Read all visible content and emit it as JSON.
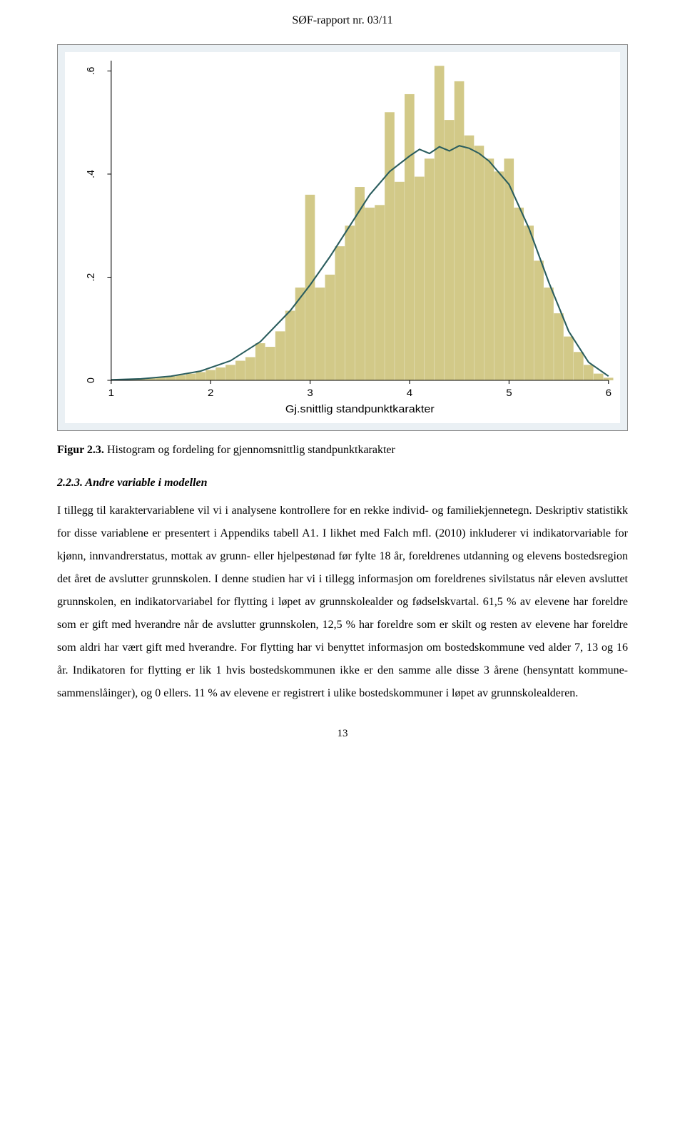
{
  "header": {
    "report_label": "SØF-rapport nr. 03/11"
  },
  "figure": {
    "chart": {
      "type": "histogram_with_density",
      "xlim": [
        1,
        6
      ],
      "ylim": [
        0,
        0.62
      ],
      "xticks": [
        1,
        2,
        3,
        4,
        5,
        6
      ],
      "yticks": [
        0,
        0.2,
        0.4,
        0.6
      ],
      "ytick_labels": [
        "0",
        ".2",
        ".4",
        ".6"
      ],
      "xlabel": "Gj.snittlig standpunktkarakter",
      "background_color": "#eaf0f4",
      "plot_background": "#ffffff",
      "bar_color": "#d2c988",
      "density_color": "#2a5d5e",
      "axis_color": "#000000",
      "tick_fontsize": 14,
      "label_fontsize": 15,
      "bin_width": 0.1,
      "bins": [
        {
          "x": 1.2,
          "h": 0.002
        },
        {
          "x": 1.3,
          "h": 0.003
        },
        {
          "x": 1.4,
          "h": 0.004
        },
        {
          "x": 1.5,
          "h": 0.006
        },
        {
          "x": 1.6,
          "h": 0.008
        },
        {
          "x": 1.7,
          "h": 0.01
        },
        {
          "x": 1.8,
          "h": 0.013
        },
        {
          "x": 1.9,
          "h": 0.016
        },
        {
          "x": 2.0,
          "h": 0.02
        },
        {
          "x": 2.1,
          "h": 0.025
        },
        {
          "x": 2.2,
          "h": 0.03
        },
        {
          "x": 2.3,
          "h": 0.038
        },
        {
          "x": 2.4,
          "h": 0.045
        },
        {
          "x": 2.5,
          "h": 0.072
        },
        {
          "x": 2.6,
          "h": 0.065
        },
        {
          "x": 2.7,
          "h": 0.095
        },
        {
          "x": 2.8,
          "h": 0.135
        },
        {
          "x": 2.9,
          "h": 0.18
        },
        {
          "x": 3.0,
          "h": 0.36
        },
        {
          "x": 3.1,
          "h": 0.18
        },
        {
          "x": 3.2,
          "h": 0.205
        },
        {
          "x": 3.3,
          "h": 0.26
        },
        {
          "x": 3.4,
          "h": 0.3
        },
        {
          "x": 3.5,
          "h": 0.375
        },
        {
          "x": 3.6,
          "h": 0.335
        },
        {
          "x": 3.7,
          "h": 0.34
        },
        {
          "x": 3.8,
          "h": 0.52
        },
        {
          "x": 3.9,
          "h": 0.385
        },
        {
          "x": 4.0,
          "h": 0.555
        },
        {
          "x": 4.1,
          "h": 0.395
        },
        {
          "x": 4.2,
          "h": 0.43
        },
        {
          "x": 4.3,
          "h": 0.61
        },
        {
          "x": 4.4,
          "h": 0.505
        },
        {
          "x": 4.5,
          "h": 0.58
        },
        {
          "x": 4.6,
          "h": 0.475
        },
        {
          "x": 4.7,
          "h": 0.455
        },
        {
          "x": 4.8,
          "h": 0.43
        },
        {
          "x": 4.9,
          "h": 0.405
        },
        {
          "x": 5.0,
          "h": 0.43
        },
        {
          "x": 5.1,
          "h": 0.335
        },
        {
          "x": 5.2,
          "h": 0.3
        },
        {
          "x": 5.3,
          "h": 0.232
        },
        {
          "x": 5.4,
          "h": 0.18
        },
        {
          "x": 5.5,
          "h": 0.13
        },
        {
          "x": 5.6,
          "h": 0.085
        },
        {
          "x": 5.7,
          "h": 0.055
        },
        {
          "x": 5.8,
          "h": 0.03
        },
        {
          "x": 5.9,
          "h": 0.013
        },
        {
          "x": 6.0,
          "h": 0.005
        }
      ],
      "density_points": [
        {
          "x": 1.0,
          "y": 0.001
        },
        {
          "x": 1.3,
          "y": 0.003
        },
        {
          "x": 1.6,
          "y": 0.008
        },
        {
          "x": 1.9,
          "y": 0.018
        },
        {
          "x": 2.2,
          "y": 0.038
        },
        {
          "x": 2.5,
          "y": 0.075
        },
        {
          "x": 2.8,
          "y": 0.135
        },
        {
          "x": 3.0,
          "y": 0.185
        },
        {
          "x": 3.2,
          "y": 0.24
        },
        {
          "x": 3.4,
          "y": 0.3
        },
        {
          "x": 3.6,
          "y": 0.36
        },
        {
          "x": 3.8,
          "y": 0.405
        },
        {
          "x": 4.0,
          "y": 0.435
        },
        {
          "x": 4.1,
          "y": 0.448
        },
        {
          "x": 4.2,
          "y": 0.44
        },
        {
          "x": 4.3,
          "y": 0.453
        },
        {
          "x": 4.4,
          "y": 0.445
        },
        {
          "x": 4.5,
          "y": 0.455
        },
        {
          "x": 4.6,
          "y": 0.45
        },
        {
          "x": 4.7,
          "y": 0.44
        },
        {
          "x": 4.8,
          "y": 0.425
        },
        {
          "x": 5.0,
          "y": 0.38
        },
        {
          "x": 5.2,
          "y": 0.295
        },
        {
          "x": 5.4,
          "y": 0.19
        },
        {
          "x": 5.6,
          "y": 0.095
        },
        {
          "x": 5.8,
          "y": 0.035
        },
        {
          "x": 6.0,
          "y": 0.008
        }
      ]
    },
    "caption_prefix": "Figur 2.3.",
    "caption_text": " Histogram og fordeling for gjennomsnittlig standpunktkarakter"
  },
  "section": {
    "heading": "2.2.3. Andre variable i modellen",
    "body": "I tillegg til karaktervariablene vil vi i analysene kontrollere for en rekke individ- og familie­kjennetegn. Deskriptiv statistikk for disse variablene er presentert i Appendiks tabell A1. I likhet med Falch mfl. (2010) inkluderer vi indikatorvariable for kjønn, innvandrerstatus, mottak av grunn- eller hjelpestønad før fylte 18 år, foreldrenes utdanning og elevens bostedsregion det året de avslutter grunnskolen. I denne studien har vi i tillegg informasjon om foreldrenes sivilstatus når eleven avsluttet grunnskolen, en indikatorvariabel for flytting i løpet av grunnskolealder og fødselskvartal. 61,5 % av elevene har foreldre som er gift med hverandre når de avslutter grunnskolen, 12,5 % har foreldre som er skilt og resten av elevene har foreldre som aldri har vært gift med hverandre. For flytting har vi benyttet informasjon om bostedskommune ved alder 7, 13 og 16 år. Indikatoren for flytting er lik 1 hvis bostedskommunen ikke er den samme alle disse 3 årene (hensyntatt kommune­sammenslåinger), og 0 ellers. 11 % av elevene er registrert i ulike bostedskommuner i løpet av grunnskolealderen."
  },
  "page_number": "13"
}
